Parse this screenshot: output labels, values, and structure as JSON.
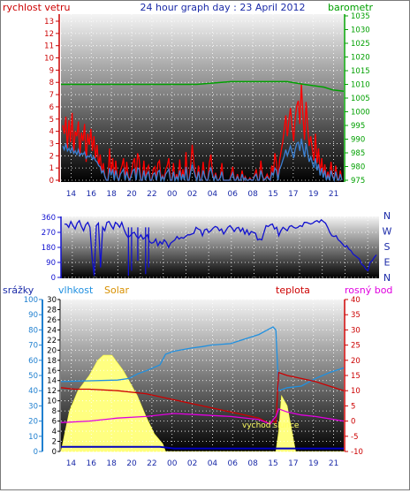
{
  "chart_data": [
    {
      "type": "line",
      "title": "24 hour graph day : 23 April 2012",
      "left_label": "rychlost vetru",
      "right_label": "barometr",
      "x_tick_labels": [
        "14",
        "16",
        "18",
        "20",
        "22",
        "00",
        "02",
        "04",
        "06",
        "08",
        "15",
        "17",
        "19",
        "21"
      ],
      "left_ticks": [
        "0",
        "1",
        "2",
        "3",
        "4",
        "5",
        "6",
        "7",
        "8",
        "9",
        "10",
        "11",
        "12",
        "13"
      ],
      "right_ticks": [
        "975",
        "980",
        "985",
        "990",
        "995",
        "1000",
        "1005",
        "1010",
        "1015",
        "1020",
        "1025",
        "1030",
        "1035"
      ],
      "ylim_left": [
        0,
        13
      ],
      "ylim_right": [
        975,
        1035
      ],
      "grid": true,
      "colors": {
        "gust": "#ff0000",
        "wind": "#3a7fd0",
        "pressure": "#00a000"
      },
      "series": [
        {
          "key": "gust",
          "values": [
            4.5,
            3.8,
            5.2,
            2.6,
            4.9,
            3.1,
            5.5,
            2.2,
            4.0,
            3.6,
            4.8,
            2.0,
            3.9,
            3.2,
            4.6,
            1.5,
            3.8,
            2.9,
            4.2,
            2.4,
            3.6,
            1.8,
            2.9,
            1.2,
            2.1,
            0.6,
            1.4,
            0.3,
            0,
            0,
            2.6,
            0.5,
            1.8,
            0,
            1.6,
            0.2,
            0,
            0.8,
            1.2,
            1.8,
            0,
            1.5,
            0.3,
            0,
            0.6,
            1.4,
            1.8,
            0,
            2.2,
            1.7,
            0,
            0,
            1.6,
            0,
            0.9,
            1.2,
            0,
            0,
            0.9,
            1.1,
            0,
            1.4,
            1.6,
            0,
            0.4,
            0,
            0.9,
            1.2,
            1.8,
            0,
            0,
            1.4,
            0,
            0.5,
            0,
            1.7,
            0,
            0.9,
            0,
            2.3,
            0,
            0,
            1.3,
            2.9,
            1.5,
            0.4,
            0,
            1.2,
            0,
            0,
            1.5,
            0.4,
            0,
            0,
            1.4,
            2.1,
            0.6,
            0,
            0.6,
            0,
            0,
            0.3,
            1.4,
            0,
            0,
            0,
            0,
            0,
            0.5,
            1.1,
            0,
            0,
            0.5,
            0,
            0,
            0.8,
            0,
            0.3,
            0,
            0,
            0.2,
            0,
            0,
            0.4,
            0.9,
            0,
            0,
            1.6,
            0.4,
            0,
            0.2,
            0.5,
            0.2,
            0,
            1.2,
            0.6,
            2.2,
            1.4,
            0,
            1.6,
            2.4,
            3.1,
            4.2,
            5.3,
            3.6,
            4.9,
            5.9,
            4.5,
            3.2,
            5.0,
            6.1,
            6.5,
            4.6,
            7.9,
            5.2,
            3.3,
            6.4,
            4.4,
            2.8,
            3.6,
            2.5,
            1.6,
            3.8,
            1.4,
            2.6,
            0.5,
            1.8,
            0.3,
            1.3,
            0,
            0.7,
            0,
            1.5,
            0.4,
            0,
            1.2,
            0.2,
            0,
            0.8,
            0
          ]
        },
        {
          "key": "wind",
          "values": [
            2.8,
            2.5,
            3.0,
            2.4,
            2.6,
            2.3,
            2.7,
            2.2,
            2.4,
            2.1,
            2.5,
            2.0,
            2.2,
            2.1,
            2.3,
            1.8,
            2.0,
            1.9,
            2.1,
            1.7,
            1.9,
            1.6,
            1.5,
            1.2,
            1.1,
            0.6,
            0.8,
            0.3,
            0,
            0,
            1.0,
            0.4,
            0.9,
            0,
            0.8,
            0.2,
            0,
            0.5,
            0.7,
            0.9,
            0,
            0.7,
            0.2,
            0,
            0.4,
            0.8,
            0.9,
            0,
            1.0,
            0.9,
            0,
            0,
            0.8,
            0,
            0.5,
            0.7,
            0,
            0,
            0.5,
            0.6,
            0,
            0.7,
            0.8,
            0,
            0.3,
            0,
            0.5,
            0.7,
            0.9,
            0,
            0,
            0.7,
            0,
            0.3,
            0,
            0.8,
            0,
            0.5,
            0,
            1.1,
            0,
            0,
            0.7,
            1.3,
            0.8,
            0.3,
            0,
            0.7,
            0,
            0,
            0.8,
            0.3,
            0,
            0,
            0.7,
            1.0,
            0.4,
            0,
            0.4,
            0,
            0,
            0.2,
            0.7,
            0,
            0,
            0,
            0,
            0,
            0.3,
            0.6,
            0,
            0,
            0.3,
            0,
            0,
            0.5,
            0,
            0.2,
            0,
            0,
            0.1,
            0,
            0,
            0.3,
            0.5,
            0,
            0,
            0.8,
            0.3,
            0,
            0.1,
            0.3,
            0.1,
            0,
            0.6,
            0.4,
            1.0,
            0.8,
            0,
            0.9,
            1.2,
            1.6,
            2.0,
            2.5,
            2.0,
            2.4,
            2.8,
            2.3,
            1.8,
            2.5,
            3.0,
            3.1,
            2.4,
            3.4,
            2.6,
            1.9,
            3.0,
            2.2,
            1.5,
            1.9,
            1.4,
            1.0,
            1.8,
            0.8,
            1.3,
            0.4,
            1.0,
            0.2,
            0.8,
            0,
            0.4,
            0,
            0.8,
            0.3,
            0,
            0.7,
            0.1,
            0,
            0.5,
            0
          ]
        },
        {
          "key": "pressure",
          "x": [
            0,
            0.1,
            0.48,
            0.6,
            0.72,
            0.8,
            0.86,
            0.93,
            0.96,
            1
          ],
          "values": [
            1010,
            1010,
            1010,
            1011,
            1011,
            1011,
            1010,
            1009,
            1008,
            1007.5
          ]
        }
      ]
    },
    {
      "type": "line",
      "right_labels": [
        "N",
        "W",
        "S",
        "E",
        "N"
      ],
      "left_ticks": [
        "0",
        "90",
        "180",
        "270",
        "360"
      ],
      "ylim": [
        0,
        360
      ],
      "grid": true,
      "colors": {
        "direction": "#1010d0"
      },
      "series": [
        {
          "key": "direction",
          "values": [
            320,
            318,
            300,
            335,
            310,
            290,
            325,
            340,
            305,
            280,
            315,
            330,
            300,
            120,
            10,
            310,
            325,
            60,
            300,
            280,
            330,
            335,
            310,
            290,
            330,
            320,
            300,
            330,
            290,
            260,
            240,
            250,
            265,
            270,
            245,
            235,
            255,
            230,
            240,
            255,
            215,
            205,
            210,
            230,
            190,
            215,
            200,
            225,
            210,
            180,
            205,
            215,
            225,
            245,
            230,
            240,
            235,
            245,
            255,
            255,
            260,
            265,
            300,
            290,
            285,
            250,
            285,
            290,
            270,
            280,
            295,
            305,
            300,
            280,
            290,
            260,
            280,
            300,
            310,
            295,
            275,
            295,
            300,
            275,
            295,
            260,
            285,
            255,
            275,
            270,
            265,
            225,
            230,
            225,
            270,
            310,
            305,
            315,
            320,
            290,
            300,
            250,
            280,
            300,
            290,
            280,
            305,
            310,
            300,
            295,
            300,
            310,
            305,
            330,
            330,
            325,
            320,
            325,
            335,
            340,
            330,
            345,
            335,
            325,
            300,
            270,
            250,
            245,
            250,
            225,
            215,
            200,
            185,
            190,
            170,
            160,
            140,
            130,
            120,
            110,
            80,
            70,
            50,
            40,
            90,
            100,
            120,
            135
          ]
        }
      ],
      "dips": [
        {
          "x": 0.205,
          "value": 10
        },
        {
          "x": 0.215,
          "value": 40
        },
        {
          "x": 0.235,
          "value": 100
        },
        {
          "x": 0.26,
          "value": 20
        },
        {
          "x": 0.27,
          "value": 60
        }
      ]
    },
    {
      "type": "area",
      "labels": {
        "rain": "srážky",
        "humidity": "vlhkost",
        "solar": "Solar",
        "temperature": "teplota",
        "dewpoint": "rosný bod"
      },
      "annotation": "vychod slunce",
      "left_ticks": [
        "0",
        "10",
        "20",
        "30",
        "40",
        "50",
        "60",
        "70",
        "80",
        "90",
        "100"
      ],
      "mid_ticks": [
        "0",
        "2",
        "4",
        "6",
        "8",
        "10",
        "12",
        "14",
        "16",
        "18",
        "20",
        "22",
        "24",
        "26",
        "28",
        "30"
      ],
      "right_ticks": [
        "-10",
        "-5",
        "0",
        "5",
        "10",
        "15",
        "20",
        "25",
        "30",
        "35",
        "40"
      ],
      "ylim_left": [
        0,
        100
      ],
      "ylim_mid": [
        0,
        30
      ],
      "ylim_right": [
        -10,
        40
      ],
      "grid": true,
      "colors": {
        "solar": "#ffff80",
        "humidity": "#2090e0",
        "temperature": "#cc0000",
        "dewpoint": "#e000e0",
        "rain_rate": "#0000c0",
        "rain_axis": "#2080d0",
        "mid_axis": "#000000"
      },
      "series": [
        {
          "key": "solar",
          "scale": "mid",
          "x": [
            0,
            0.03,
            0.06,
            0.1,
            0.13,
            0.15,
            0.18,
            0.2,
            0.22,
            0.24,
            0.26,
            0.27,
            0.3,
            0.33,
            0.36,
            0.37,
            0.4,
            0.42,
            0.74,
            0.76,
            0.77,
            0.78,
            0.8,
            0.81,
            0.82,
            0.83,
            1
          ],
          "values": [
            0,
            8,
            12,
            15,
            18,
            19,
            19,
            17.5,
            16,
            14,
            12,
            11,
            7,
            3.5,
            1.5,
            0,
            0,
            0,
            0,
            0,
            4,
            11,
            9,
            6,
            3,
            0,
            0
          ]
        },
        {
          "key": "humidity",
          "scale": "left",
          "x": [
            0,
            0.2,
            0.24,
            0.27,
            0.3,
            0.35,
            0.37,
            0.4,
            0.46,
            0.5,
            0.53,
            0.6,
            0.65,
            0.7,
            0.73,
            0.75,
            0.76,
            0.77,
            0.8,
            0.85,
            0.9,
            0.95,
            1
          ],
          "values": [
            46,
            47,
            48,
            51,
            53,
            57,
            64,
            66,
            68,
            69,
            70,
            71,
            74,
            77,
            80,
            82,
            80,
            40,
            42,
            43,
            48,
            52,
            55
          ]
        },
        {
          "key": "temperature",
          "scale": "right",
          "x": [
            0,
            0.05,
            0.1,
            0.2,
            0.3,
            0.4,
            0.5,
            0.6,
            0.7,
            0.74,
            0.75,
            0.76,
            0.77,
            0.8,
            0.85,
            0.9,
            1
          ],
          "values": [
            11,
            10.5,
            10.5,
            10,
            9,
            7,
            5,
            3,
            1,
            -1,
            0,
            -0.5,
            16,
            15,
            14,
            13,
            10
          ]
        },
        {
          "key": "dewpoint",
          "scale": "right",
          "x": [
            0,
            0.1,
            0.2,
            0.3,
            0.4,
            0.5,
            0.6,
            0.7,
            0.74,
            0.75,
            0.76,
            0.77,
            0.8,
            0.85,
            0.9,
            1
          ],
          "values": [
            -0.5,
            0,
            1,
            1.5,
            2.5,
            2,
            1.5,
            0.5,
            -1,
            0.5,
            1.5,
            4,
            3,
            2,
            1.5,
            0
          ]
        },
        {
          "key": "rain_rate",
          "scale": "left",
          "x": [
            0,
            0.35,
            0.4,
            1
          ],
          "values": [
            3,
            3,
            2,
            2
          ]
        }
      ]
    }
  ]
}
